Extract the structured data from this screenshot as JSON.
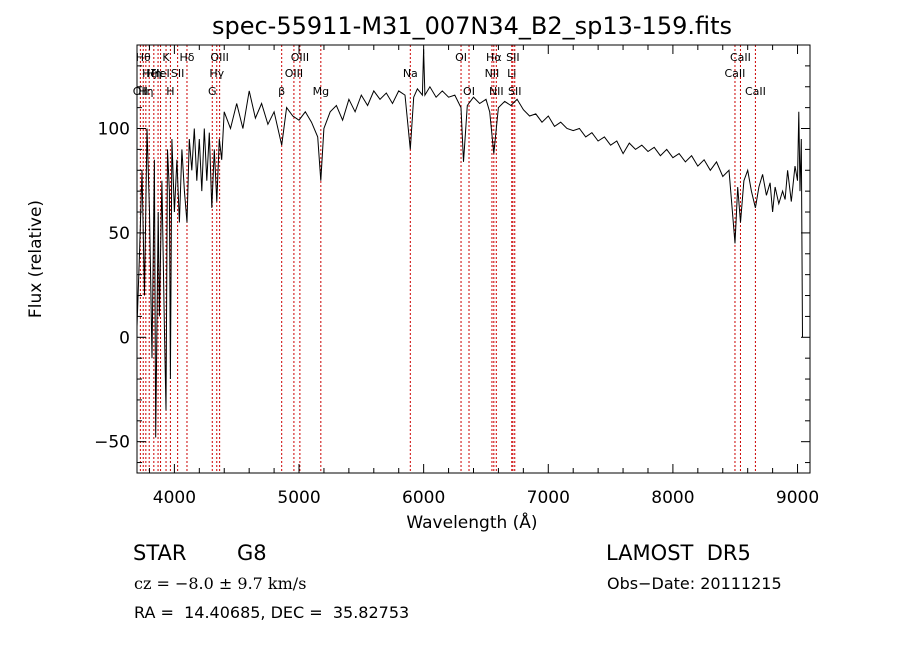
{
  "chart_data": {
    "type": "line",
    "title": "spec-55911-M31_007N34_B2_sp13-159.fits",
    "xlabel": "Wavelength (Å)",
    "ylabel": "Flux (relative)",
    "xlim": [
      3700,
      9100
    ],
    "ylim": [
      -65,
      140
    ],
    "xticks": [
      4000,
      5000,
      6000,
      7000,
      8000,
      9000
    ],
    "xtick_labels": [
      "4000",
      "5000",
      "6000",
      "7000",
      "8000",
      "9000"
    ],
    "yticks": [
      -50,
      0,
      50,
      100
    ],
    "ytick_labels": [
      "−50",
      "0",
      "50",
      "100"
    ],
    "grid": false,
    "series": [
      {
        "points": [
          [
            3700,
            5
          ],
          [
            3720,
            40
          ],
          [
            3740,
            80
          ],
          [
            3760,
            20
          ],
          [
            3780,
            100
          ],
          [
            3800,
            60
          ],
          [
            3820,
            -10
          ],
          [
            3840,
            85
          ],
          [
            3850,
            -48
          ],
          [
            3870,
            60
          ],
          [
            3880,
            10
          ],
          [
            3900,
            75
          ],
          [
            3920,
            5
          ],
          [
            3933,
            -35
          ],
          [
            3945,
            90
          ],
          [
            3960,
            70
          ],
          [
            3968,
            -20
          ],
          [
            3980,
            95
          ],
          [
            4000,
            60
          ],
          [
            4020,
            85
          ],
          [
            4040,
            55
          ],
          [
            4060,
            90
          ],
          [
            4080,
            70
          ],
          [
            4101,
            55
          ],
          [
            4120,
            95
          ],
          [
            4140,
            80
          ],
          [
            4160,
            100
          ],
          [
            4180,
            75
          ],
          [
            4200,
            95
          ],
          [
            4220,
            70
          ],
          [
            4240,
            100
          ],
          [
            4260,
            75
          ],
          [
            4280,
            98
          ],
          [
            4300,
            62
          ],
          [
            4320,
            90
          ],
          [
            4340,
            65
          ],
          [
            4360,
            95
          ],
          [
            4380,
            85
          ],
          [
            4400,
            108
          ],
          [
            4450,
            100
          ],
          [
            4500,
            112
          ],
          [
            4550,
            100
          ],
          [
            4600,
            118
          ],
          [
            4650,
            105
          ],
          [
            4700,
            112
          ],
          [
            4750,
            102
          ],
          [
            4800,
            108
          ],
          [
            4861,
            92
          ],
          [
            4900,
            110
          ],
          [
            4950,
            106
          ],
          [
            5000,
            104
          ],
          [
            5050,
            108
          ],
          [
            5100,
            103
          ],
          [
            5150,
            96
          ],
          [
            5175,
            75
          ],
          [
            5200,
            100
          ],
          [
            5250,
            108
          ],
          [
            5300,
            111
          ],
          [
            5350,
            104
          ],
          [
            5400,
            114
          ],
          [
            5450,
            108
          ],
          [
            5500,
            116
          ],
          [
            5550,
            111
          ],
          [
            5600,
            118
          ],
          [
            5650,
            114
          ],
          [
            5700,
            117
          ],
          [
            5750,
            112
          ],
          [
            5800,
            118
          ],
          [
            5850,
            116
          ],
          [
            5893,
            90
          ],
          [
            5920,
            115
          ],
          [
            5950,
            119
          ],
          [
            5990,
            116
          ],
          [
            6000,
            138
          ],
          [
            6010,
            116
          ],
          [
            6050,
            120
          ],
          [
            6100,
            115
          ],
          [
            6150,
            118
          ],
          [
            6200,
            115
          ],
          [
            6250,
            116
          ],
          [
            6300,
            110
          ],
          [
            6320,
            84
          ],
          [
            6350,
            111
          ],
          [
            6400,
            115
          ],
          [
            6450,
            112
          ],
          [
            6500,
            114
          ],
          [
            6530,
            108
          ],
          [
            6563,
            88
          ],
          [
            6600,
            110
          ],
          [
            6650,
            113
          ],
          [
            6700,
            111
          ],
          [
            6750,
            114
          ],
          [
            6800,
            109
          ],
          [
            6850,
            106
          ],
          [
            6900,
            107
          ],
          [
            6950,
            103
          ],
          [
            7000,
            106
          ],
          [
            7050,
            101
          ],
          [
            7100,
            103
          ],
          [
            7150,
            100
          ],
          [
            7200,
            99
          ],
          [
            7250,
            100
          ],
          [
            7300,
            96
          ],
          [
            7350,
            98
          ],
          [
            7400,
            94
          ],
          [
            7450,
            96
          ],
          [
            7500,
            92
          ],
          [
            7550,
            94
          ],
          [
            7600,
            88
          ],
          [
            7650,
            93
          ],
          [
            7700,
            90
          ],
          [
            7750,
            92
          ],
          [
            7800,
            89
          ],
          [
            7850,
            91
          ],
          [
            7900,
            87
          ],
          [
            7950,
            90
          ],
          [
            8000,
            86
          ],
          [
            8050,
            88
          ],
          [
            8100,
            84
          ],
          [
            8150,
            87
          ],
          [
            8200,
            82
          ],
          [
            8250,
            85
          ],
          [
            8300,
            80
          ],
          [
            8350,
            84
          ],
          [
            8400,
            77
          ],
          [
            8450,
            80
          ],
          [
            8498,
            45
          ],
          [
            8520,
            72
          ],
          [
            8542,
            55
          ],
          [
            8570,
            75
          ],
          [
            8600,
            80
          ],
          [
            8630,
            70
          ],
          [
            8662,
            62
          ],
          [
            8690,
            72
          ],
          [
            8720,
            78
          ],
          [
            8750,
            68
          ],
          [
            8780,
            74
          ],
          [
            8800,
            60
          ],
          [
            8820,
            72
          ],
          [
            8850,
            64
          ],
          [
            8880,
            70
          ],
          [
            8900,
            66
          ],
          [
            8920,
            80
          ],
          [
            8950,
            65
          ],
          [
            8980,
            82
          ],
          [
            9000,
            75
          ],
          [
            9010,
            108
          ],
          [
            9020,
            70
          ],
          [
            9030,
            95
          ],
          [
            9040,
            0
          ]
        ]
      }
    ],
    "lines": [
      {
        "wave": 3727,
        "label": "OII",
        "row": 3
      },
      {
        "wave": 3750,
        "label": "Hθ",
        "row": 1
      },
      {
        "wave": 3771,
        "label": "Hη",
        "row": 3
      },
      {
        "wave": 3798,
        "label": "Hζ",
        "row": 2
      },
      {
        "wave": 3835,
        "label": "Hη",
        "row": 2
      },
      {
        "wave": 3869,
        "label": "Hε",
        "row": 2
      },
      {
        "wave": 3889,
        "label": "HeI",
        "row": 2
      },
      {
        "wave": 3933,
        "label": "K",
        "row": 1
      },
      {
        "wave": 3968,
        "label": "H",
        "row": 3
      },
      {
        "wave": 4026,
        "label": "SII",
        "row": 2
      },
      {
        "wave": 4101,
        "label": "Hδ",
        "row": 1
      },
      {
        "wave": 4304,
        "label": "G",
        "row": 3
      },
      {
        "wave": 4340,
        "label": "Hγ",
        "row": 2
      },
      {
        "wave": 4363,
        "label": "OIII",
        "row": 1
      },
      {
        "wave": 4861,
        "label": "β",
        "row": 3
      },
      {
        "wave": 4959,
        "label": "OIII",
        "row": 2
      },
      {
        "wave": 5007,
        "label": "OIII",
        "row": 1
      },
      {
        "wave": 5175,
        "label": "Mg",
        "row": 3
      },
      {
        "wave": 5893,
        "label": "Na",
        "row": 2
      },
      {
        "wave": 6300,
        "label": "OI",
        "row": 1
      },
      {
        "wave": 6364,
        "label": "OI",
        "row": 3
      },
      {
        "wave": 6548,
        "label": "NII",
        "row": 2
      },
      {
        "wave": 6563,
        "label": "Hα",
        "row": 1
      },
      {
        "wave": 6583,
        "label": "NII",
        "row": 3
      },
      {
        "wave": 6707,
        "label": "Li",
        "row": 2
      },
      {
        "wave": 6716,
        "label": "SII",
        "row": 1
      },
      {
        "wave": 6731,
        "label": "SII",
        "row": 3
      },
      {
        "wave": 8498,
        "label": "CaII",
        "row": 2
      },
      {
        "wave": 8542,
        "label": "CaII",
        "row": 1
      },
      {
        "wave": 8662,
        "label": "CaII",
        "row": 3
      }
    ],
    "line_color": "#000000",
    "marker_color": "#cc0000"
  },
  "info": {
    "class_text": "STAR",
    "subclass_text": "G8",
    "cz_text": "cz = −8.0 ± 9.7 km/s",
    "coord_text": "RA =  14.40685, DEC =  35.82753",
    "survey_text": "LAMOST  DR5",
    "obsdate_text": "Obs−Date: 20111215"
  }
}
